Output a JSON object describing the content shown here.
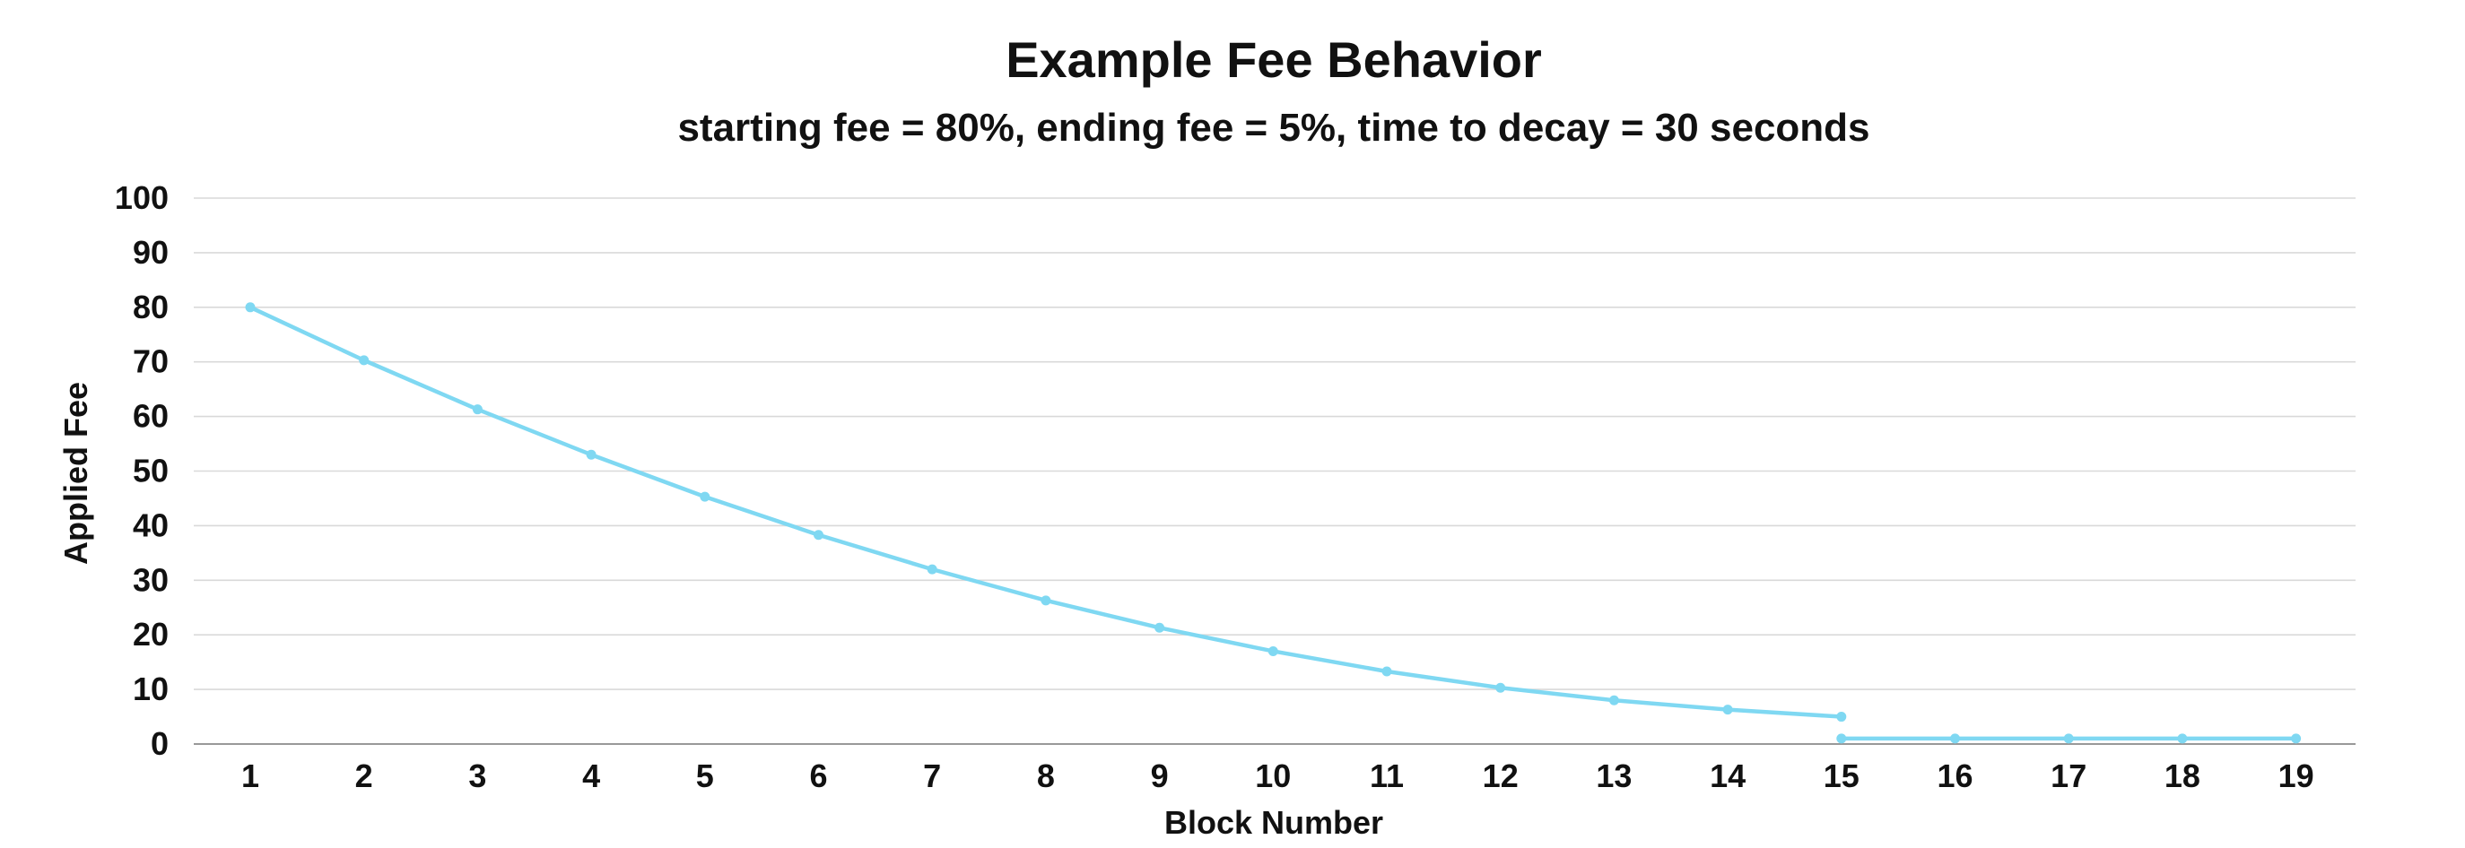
{
  "chart_data": {
    "type": "line",
    "title": "Example Fee Behavior",
    "subtitle": "starting fee = 80%, ending fee = 5%, time to decay = 30 seconds",
    "xlabel": "Block Number",
    "ylabel": "Applied Fee",
    "ylim": [
      0,
      100
    ],
    "yticks": [
      0,
      10,
      20,
      30,
      40,
      50,
      60,
      70,
      80,
      90,
      100
    ],
    "categories": [
      "1",
      "2",
      "3",
      "4",
      "5",
      "6",
      "7",
      "8",
      "9",
      "10",
      "11",
      "12",
      "13",
      "14",
      "15",
      "16",
      "17",
      "18",
      "19"
    ],
    "grid": true,
    "legend": "none",
    "series_color": "#7fd8f2",
    "segments": [
      {
        "x": [
          1,
          2,
          3,
          4,
          5,
          6,
          7,
          8,
          9,
          10,
          11,
          12,
          13,
          14,
          15
        ],
        "values": [
          80,
          70.3,
          61.3,
          53,
          45.3,
          38.3,
          32,
          26.3,
          21.3,
          17,
          13.3,
          10.3,
          8,
          6.3,
          5
        ]
      },
      {
        "x": [
          15,
          16,
          17,
          18,
          19
        ],
        "values": [
          1,
          1,
          1,
          1,
          1
        ]
      }
    ]
  }
}
